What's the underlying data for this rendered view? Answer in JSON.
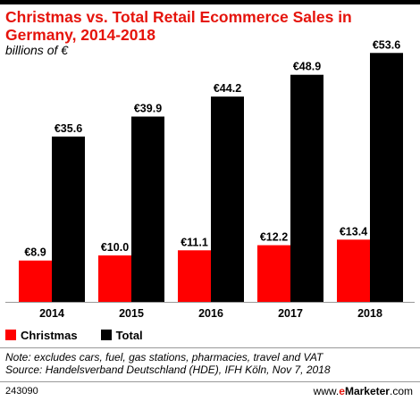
{
  "header": {
    "title": "Christmas vs. Total Retail Ecommerce Sales in Germany, 2014-2018",
    "subtitle": "billions of €"
  },
  "colors": {
    "christmas": "#ff0000",
    "total": "#000000",
    "title": "#e5140c"
  },
  "chart_data": {
    "type": "bar",
    "categories": [
      "2014",
      "2015",
      "2016",
      "2017",
      "2018"
    ],
    "series": [
      {
        "name": "Christmas",
        "values": [
          8.9,
          10.0,
          11.1,
          12.2,
          13.4
        ],
        "labels": [
          "€8.9",
          "€10.0",
          "€11.1",
          "€12.2",
          "€13.4"
        ]
      },
      {
        "name": "Total",
        "values": [
          35.6,
          39.9,
          44.2,
          48.9,
          53.6
        ],
        "labels": [
          "€35.6",
          "€39.9",
          "€44.2",
          "€48.9",
          "€53.6"
        ]
      }
    ],
    "title": "Christmas vs. Total Retail Ecommerce Sales in Germany, 2014-2018",
    "xlabel": "",
    "ylabel": "billions of €",
    "ylim": [
      0,
      60
    ],
    "grid": false,
    "legend": "bottom-left"
  },
  "legend": {
    "items": [
      {
        "label": "Christmas",
        "color": "#ff0000"
      },
      {
        "label": "Total",
        "color": "#000000"
      }
    ]
  },
  "footer": {
    "note": "Note: excludes cars, fuel, gas stations, pharmacies, travel and VAT",
    "source": "Source: Handelsverband Deutschland (HDE), IFH Köln, Nov 7, 2018",
    "chart_id": "243090",
    "brand_prefix": "www.",
    "brand_e": "e",
    "brand_rest": "Marketer",
    "brand_suffix": ".com"
  }
}
